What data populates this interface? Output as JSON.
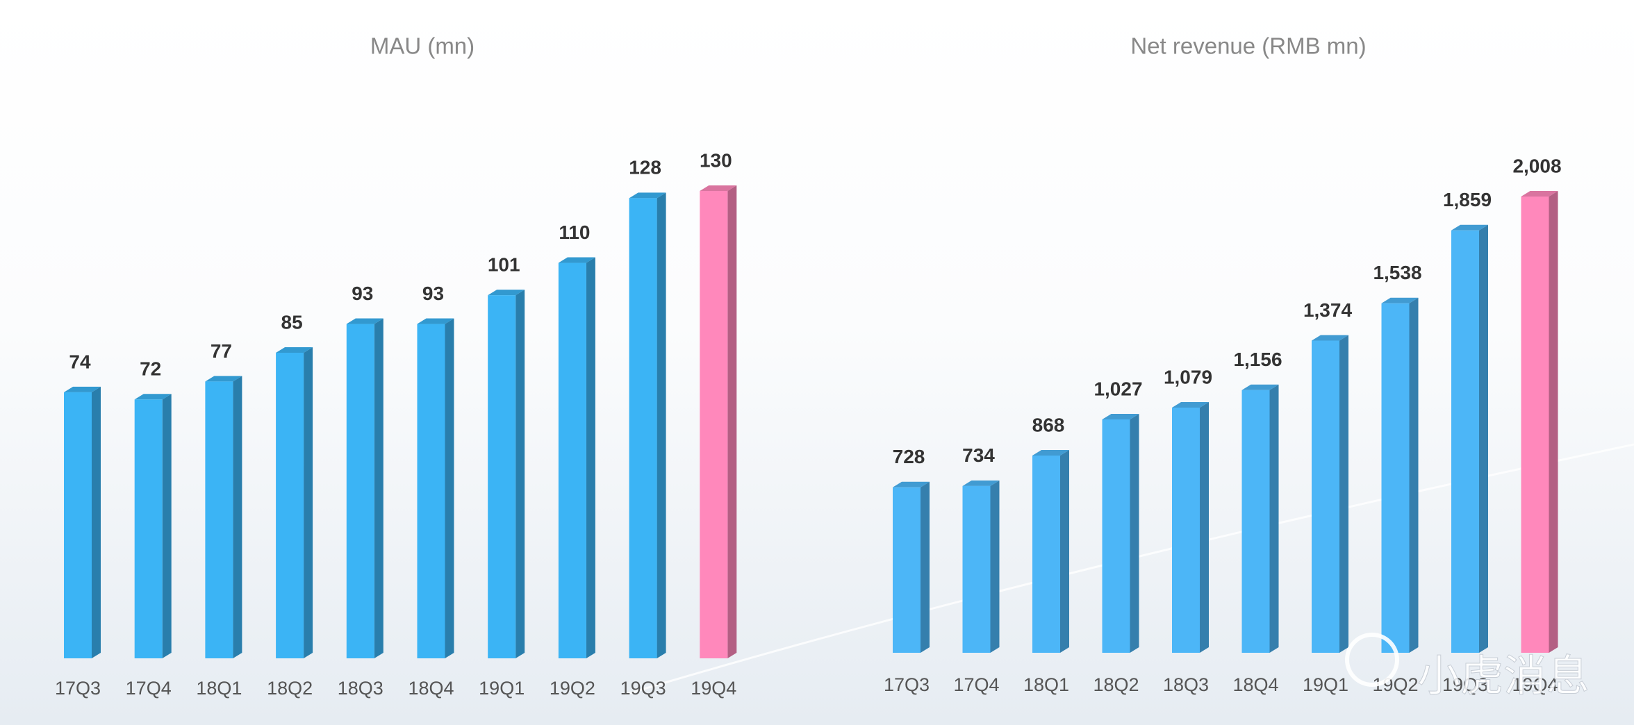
{
  "chart_data": [
    {
      "type": "bar3d",
      "title": "MAU (mn)",
      "categories": [
        "17Q3",
        "17Q4",
        "18Q1",
        "18Q2",
        "18Q3",
        "18Q4",
        "19Q1",
        "19Q2",
        "19Q3",
        "19Q4"
      ],
      "values": [
        74,
        72,
        77,
        85,
        93,
        93,
        101,
        110,
        128,
        130
      ],
      "colors": [
        "#3bb4f5",
        "#3bb4f5",
        "#3bb4f5",
        "#3bb4f5",
        "#3bb4f5",
        "#3bb4f5",
        "#3bb4f5",
        "#3bb4f5",
        "#3bb4f5",
        "#ff88bb"
      ]
    },
    {
      "type": "bar3d",
      "title": "Net revenue (RMB mn)",
      "categories": [
        "17Q3",
        "17Q4",
        "18Q1",
        "18Q2",
        "18Q3",
        "18Q4",
        "19Q1",
        "19Q2",
        "19Q3",
        "19Q4"
      ],
      "values": [
        728,
        734,
        868,
        1027,
        1079,
        1156,
        1374,
        1538,
        1859,
        2008
      ],
      "value_labels": [
        "728",
        "734",
        "868",
        "1,027",
        "1,079",
        "1,156",
        "1,374",
        "1,538",
        "1,859",
        "2,008"
      ],
      "colors": [
        "#4cb6f7",
        "#4cb6f7",
        "#4cb6f7",
        "#4cb6f7",
        "#4cb6f7",
        "#4cb6f7",
        "#4cb6f7",
        "#4cb6f7",
        "#4cb6f7",
        "#ff88bb"
      ]
    }
  ],
  "watermark": "小虎消息"
}
